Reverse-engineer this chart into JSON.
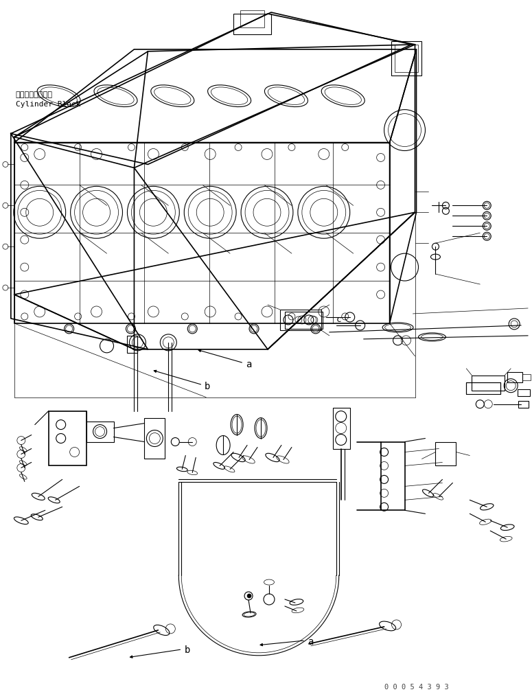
{
  "background_color": "#ffffff",
  "line_color": "#000000",
  "part_number_text": "0 0 0 5 4 3 9 3",
  "label_a": "a",
  "label_b": "b",
  "cylinder_block_jp": "シリンダブロック",
  "cylinder_block_en": "Cylinder Block",
  "figsize": [
    7.75,
    10.08
  ],
  "dpi": 100
}
